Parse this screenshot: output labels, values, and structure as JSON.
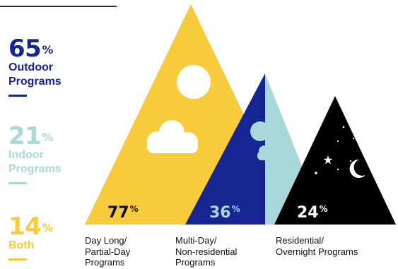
{
  "summary": [
    {
      "value": "65",
      "sign": "%",
      "label_lines": [
        "Outdoor",
        "Programs"
      ],
      "color": "#172593"
    },
    {
      "value": "21",
      "sign": "%",
      "label_lines": [
        "Indoor",
        "Programs"
      ],
      "color": "#a8d8da"
    },
    {
      "value": "14",
      "sign": "%",
      "label_lines": [
        "Both"
      ],
      "color": "#f7cb3c"
    }
  ],
  "chart_data": {
    "type": "bar",
    "categories": [
      "Day Long/ Partial-Day Programs",
      "Multi-Day/ Non-residential Programs",
      "Residential/ Overnight Programs"
    ],
    "values": [
      77,
      36,
      24
    ],
    "unit": "%",
    "value_labels": [
      "77",
      "36",
      "24"
    ],
    "caption_lines": [
      [
        "Day Long/",
        "Partial-Day",
        "Programs"
      ],
      [
        "Multi-Day/",
        "Non-residential",
        "Programs"
      ],
      [
        "Residential/",
        "Overnight Programs"
      ]
    ],
    "colors": {
      "day": "#f7cb3c",
      "multi": "#172593",
      "residential": "#000000",
      "light": "#a8d8da"
    },
    "label_colors": [
      "#111111",
      "#a8d8da",
      "#ffffff"
    ]
  }
}
